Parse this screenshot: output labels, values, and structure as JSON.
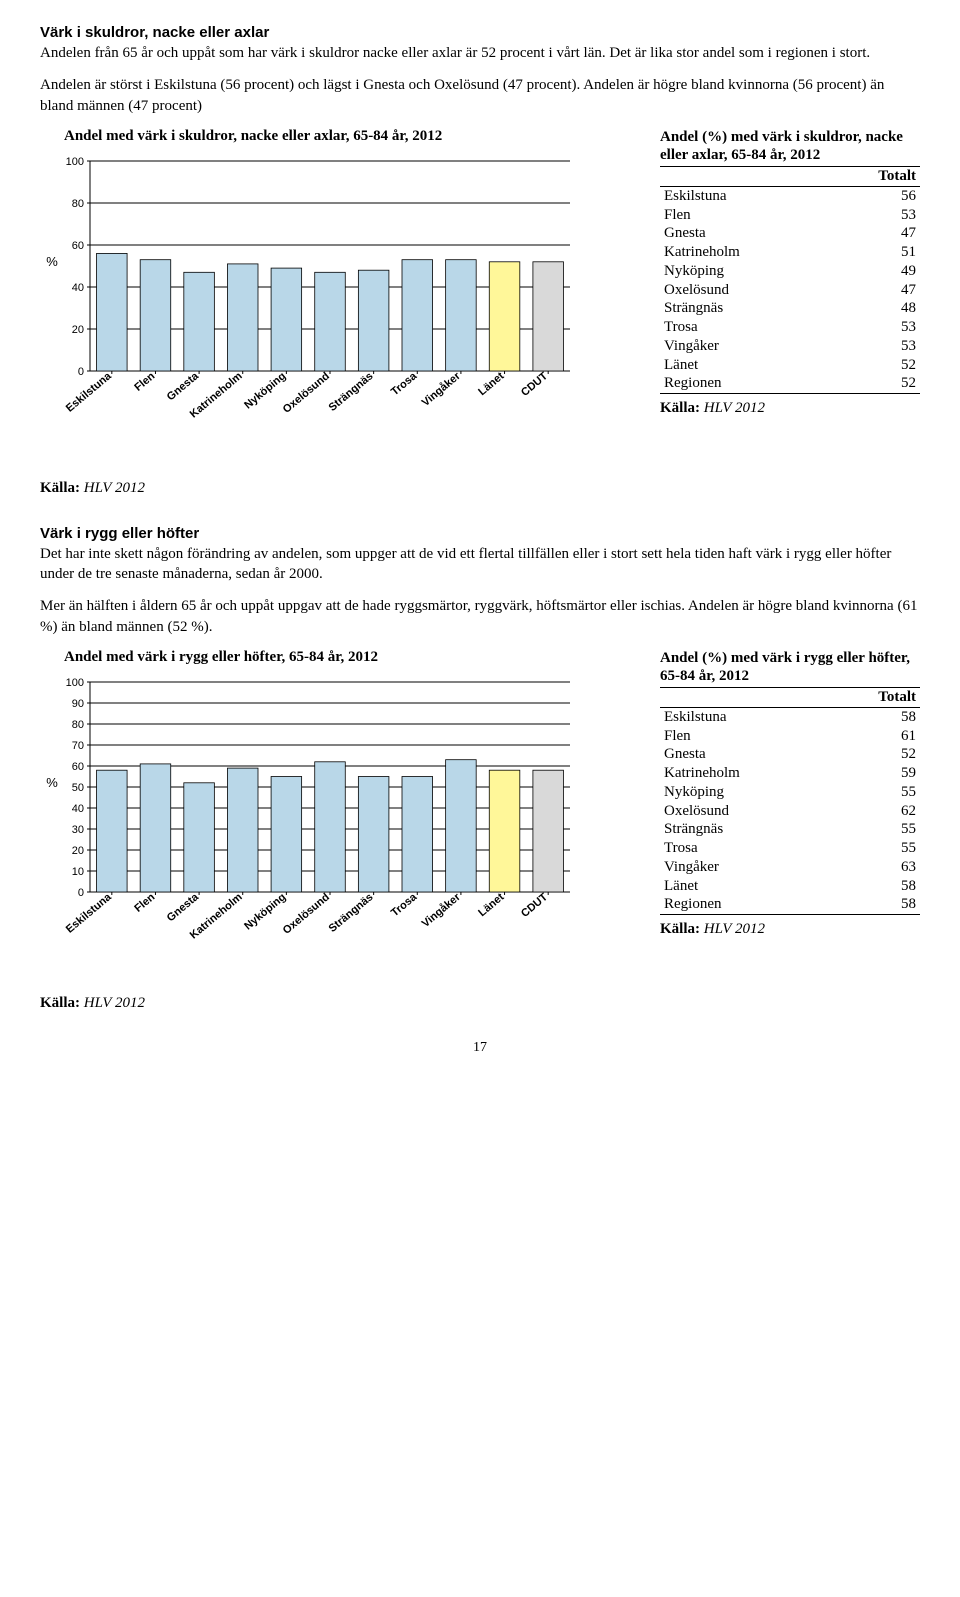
{
  "section1": {
    "heading": "Värk i skuldror, nacke eller axlar",
    "para1": "Andelen från 65 år och uppåt som har värk i skuldror nacke eller axlar är 52 procent i vårt län. Det är lika stor andel som i regionen i stort.",
    "para2": "Andelen är störst i Eskilstuna (56 procent) och lägst i Gnesta och Oxelösund (47 procent). Andelen är högre bland kvinnorna (56 procent) än bland männen (47 procent)",
    "chart": {
      "title": "Andel med värk i skuldror, nacke eller axlar, 65-84 år, 2012",
      "y_label": "%",
      "ylim": [
        0,
        100
      ],
      "ytick_step": 20,
      "categories": [
        "Eskilstuna",
        "Flen",
        "Gnesta",
        "Katrineholm",
        "Nyköping",
        "Oxelösund",
        "Strängnäs",
        "Trosa",
        "Vingåker",
        "Länet",
        "CDUT"
      ],
      "values": [
        56,
        53,
        47,
        51,
        49,
        47,
        48,
        53,
        53,
        52,
        52
      ],
      "bar_color": "#b9d7e8",
      "highlight_index": 9,
      "highlight_color": "#fff799",
      "last_index": 10,
      "last_color": "#d9d9d9",
      "grid_color": "#000000",
      "background": "#ffffff",
      "tick_font_size": 11,
      "label_font_size": 13
    },
    "table": {
      "title": "Andel (%) med värk i skuldror, nacke eller axlar, 65-84 år, 2012",
      "col_header": "Totalt",
      "rows": [
        [
          "Eskilstuna",
          "56"
        ],
        [
          "Flen",
          "53"
        ],
        [
          "Gnesta",
          "47"
        ],
        [
          "Katrineholm",
          "51"
        ],
        [
          "Nyköping",
          "49"
        ],
        [
          "Oxelösund",
          "47"
        ],
        [
          "Strängnäs",
          "48"
        ],
        [
          "Trosa",
          "53"
        ],
        [
          "Vingåker",
          "53"
        ],
        [
          "Länet",
          "52"
        ],
        [
          "Regionen",
          "52"
        ]
      ],
      "source_label": "Källa:",
      "source_value": "HLV 2012"
    },
    "outer_source_label": "Källa:",
    "outer_source_value": "HLV 2012"
  },
  "section2": {
    "heading": "Värk i rygg eller höfter",
    "para1": "Det har inte skett någon förändring av andelen, som uppger att de vid ett flertal tillfällen eller i stort sett hela tiden haft värk i rygg eller höfter under de tre senaste månaderna, sedan år 2000.",
    "para2": "Mer än hälften i åldern 65 år och uppåt uppgav att de hade ryggsmärtor, ryggvärk, höftsmärtor eller ischias. Andelen är högre bland kvinnorna (61 %) än bland männen (52 %).",
    "chart": {
      "title": "Andel med värk i rygg eller höfter, 65-84 år, 2012",
      "y_label": "%",
      "ylim": [
        0,
        100
      ],
      "ytick_step": 10,
      "categories": [
        "Eskilstuna",
        "Flen",
        "Gnesta",
        "Katrineholm",
        "Nyköping",
        "Oxelösund",
        "Strängnäs",
        "Trosa",
        "Vingåker",
        "Länet",
        "CDUT"
      ],
      "values": [
        58,
        61,
        52,
        59,
        55,
        62,
        55,
        55,
        63,
        58,
        58
      ],
      "bar_color": "#b9d7e8",
      "highlight_index": 9,
      "highlight_color": "#fff799",
      "last_index": 10,
      "last_color": "#d9d9d9",
      "grid_color": "#000000",
      "background": "#ffffff",
      "tick_font_size": 11,
      "label_font_size": 13
    },
    "table": {
      "title": "Andel (%) med värk i rygg eller höfter, 65-84 år, 2012",
      "col_header": "Totalt",
      "rows": [
        [
          "Eskilstuna",
          "58"
        ],
        [
          "Flen",
          "61"
        ],
        [
          "Gnesta",
          "52"
        ],
        [
          "Katrineholm",
          "59"
        ],
        [
          "Nyköping",
          "55"
        ],
        [
          "Oxelösund",
          "62"
        ],
        [
          "Strängnäs",
          "55"
        ],
        [
          "Trosa",
          "55"
        ],
        [
          "Vingåker",
          "63"
        ],
        [
          "Länet",
          "58"
        ],
        [
          "Regionen",
          "58"
        ]
      ],
      "source_label": "Källa:",
      "source_value": "HLV 2012"
    },
    "outer_source_label": "Källa:",
    "outer_source_value": "HLV 2012"
  },
  "page_number": "17"
}
